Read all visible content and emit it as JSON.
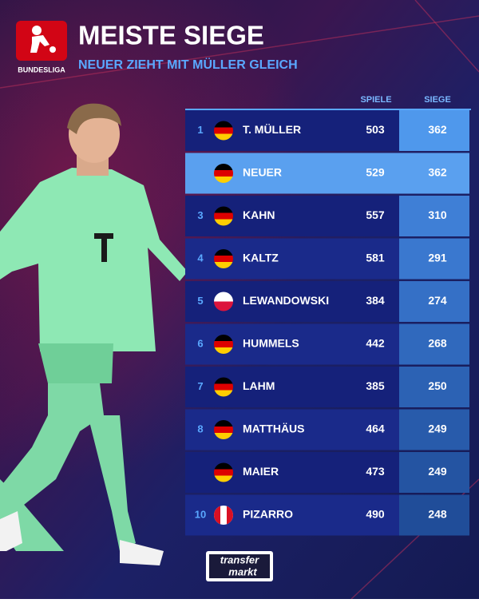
{
  "header": {
    "logo_text": "BUNDESLIGA",
    "title": "MEISTE SIEGE",
    "subtitle": "NEUER ZIEHT MIT MÜLLER GLEICH"
  },
  "table": {
    "columns": [
      "SPIELE",
      "SIEGE"
    ],
    "rows": [
      {
        "rank": "1",
        "name": "T. MÜLLER",
        "games": "503",
        "wins": "362"
      },
      {
        "name": "NEUER",
        "games": "529",
        "wins": "362"
      },
      {
        "rank": "3",
        "name": "KAHN",
        "games": "557",
        "wins": "310"
      },
      {
        "rank": "4",
        "name": "KALTZ",
        "games": "581",
        "wins": "291"
      },
      {
        "rank": "5",
        "name": "LEWANDOWSKI",
        "games": "384",
        "wins": "274"
      },
      {
        "rank": "6",
        "name": "HUMMELS",
        "games": "442",
        "wins": "268"
      },
      {
        "rank": "7",
        "name": "LAHM",
        "games": "385",
        "wins": "250"
      },
      {
        "rank": "8",
        "name": "MATTHÄUS",
        "games": "464",
        "wins": "249"
      },
      {
        "name": "MAIER",
        "games": "473",
        "wins": "249"
      },
      {
        "rank": "10",
        "name": "PIZARRO",
        "games": "490",
        "wins": "248"
      }
    ]
  },
  "footer": {
    "logo_top": "transfer",
    "logo_bottom": "markt"
  }
}
